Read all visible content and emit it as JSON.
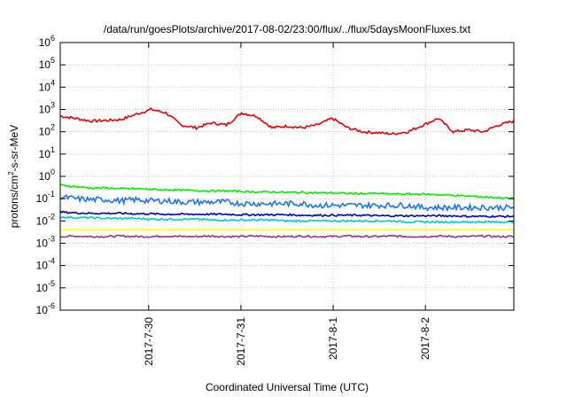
{
  "chart_data": {
    "type": "line",
    "title": "/data/run/goesPlots/archive/2017-08-02/23:00/flux/../flux/5daysMoonFluxes.txt",
    "xlabel": "Coordinated Universal Time (UTC)",
    "ylabel_parts": [
      "protons/cm",
      "2",
      "-s-sr-MeV"
    ],
    "yscale": "log",
    "ylim": [
      -6,
      6
    ],
    "y_ticks": [
      {
        "base": "10",
        "exp": "6"
      },
      {
        "base": "10",
        "exp": "5"
      },
      {
        "base": "10",
        "exp": "4"
      },
      {
        "base": "10",
        "exp": "3"
      },
      {
        "base": "10",
        "exp": "2"
      },
      {
        "base": "10",
        "exp": "1"
      },
      {
        "base": "10",
        "exp": "0"
      },
      {
        "base": "10",
        "exp": "-1"
      },
      {
        "base": "10",
        "exp": "-2"
      },
      {
        "base": "10",
        "exp": "-3"
      },
      {
        "base": "10",
        "exp": "-4"
      },
      {
        "base": "10",
        "exp": "-5"
      },
      {
        "base": "10",
        "exp": "-6"
      }
    ],
    "x_range_days": [
      "2017-07-29 01:00",
      "2017-08-02 23:00"
    ],
    "x_ticks": [
      "2017-7-30",
      "2017-7-31",
      "2017-8-1",
      "2017-8-2"
    ],
    "grid": true,
    "series": [
      {
        "color": "#ee0000",
        "values": [
          500,
          400,
          300,
          320,
          350,
          600,
          1000,
          700,
          200,
          150,
          250,
          200,
          700,
          500,
          150,
          180,
          150,
          200,
          400,
          150,
          100,
          90,
          80,
          100,
          200,
          400,
          100,
          120,
          100,
          200,
          300
        ]
      },
      {
        "color": "#00ee00",
        "values": [
          0.4,
          0.35,
          0.3,
          0.3,
          0.28,
          0.28,
          0.26,
          0.25,
          0.24,
          0.23,
          0.22,
          0.22,
          0.21,
          0.2,
          0.2,
          0.19,
          0.19,
          0.18,
          0.18,
          0.17,
          0.17,
          0.17,
          0.16,
          0.16,
          0.16,
          0.15,
          0.14,
          0.13,
          0.12,
          0.11,
          0.1
        ]
      },
      {
        "color": "#1874ff",
        "values": [
          0.12,
          0.1,
          0.09,
          0.09,
          0.08,
          0.09,
          0.08,
          0.08,
          0.07,
          0.07,
          0.07,
          0.07,
          0.06,
          0.06,
          0.06,
          0.06,
          0.06,
          0.05,
          0.05,
          0.05,
          0.05,
          0.05,
          0.05,
          0.05,
          0.04,
          0.04,
          0.04,
          0.04,
          0.04,
          0.04,
          0.04
        ]
      },
      {
        "color": "#00cccc",
        "values": [
          0.015,
          0.014,
          0.014,
          0.013,
          0.013,
          0.013,
          0.012,
          0.012,
          0.012,
          0.012,
          0.011,
          0.011,
          0.011,
          0.011,
          0.011,
          0.01,
          0.01,
          0.01,
          0.01,
          0.01,
          0.01,
          0.01,
          0.01,
          0.009,
          0.009,
          0.009,
          0.009,
          0.009,
          0.009,
          0.009,
          0.009
        ]
      },
      {
        "color": "#0000cc",
        "values": [
          0.025,
          0.023,
          0.022,
          0.022,
          0.022,
          0.021,
          0.021,
          0.02,
          0.02,
          0.02,
          0.02,
          0.02,
          0.019,
          0.019,
          0.019,
          0.019,
          0.018,
          0.018,
          0.018,
          0.018,
          0.018,
          0.017,
          0.017,
          0.017,
          0.017,
          0.017,
          0.017,
          0.016,
          0.016,
          0.016,
          0.016
        ]
      },
      {
        "color": "#ffff00",
        "values": [
          0.004,
          0.004,
          0.004,
          0.004,
          0.004,
          0.004,
          0.004,
          0.004,
          0.004,
          0.004,
          0.004,
          0.004,
          0.004,
          0.004,
          0.004,
          0.004,
          0.004,
          0.004,
          0.004,
          0.004,
          0.004,
          0.004,
          0.004,
          0.004,
          0.004,
          0.004,
          0.004,
          0.004,
          0.004,
          0.004,
          0.004
        ]
      },
      {
        "color": "#993388",
        "values": [
          0.002,
          0.0021,
          0.002,
          0.002,
          0.0021,
          0.002,
          0.002,
          0.0021,
          0.002,
          0.002,
          0.0021,
          0.002,
          0.002,
          0.0021,
          0.002,
          0.002,
          0.0021,
          0.002,
          0.002,
          0.0021,
          0.002,
          0.002,
          0.0021,
          0.002,
          0.002,
          0.0021,
          0.002,
          0.002,
          0.0021,
          0.002,
          0.002
        ]
      }
    ]
  }
}
